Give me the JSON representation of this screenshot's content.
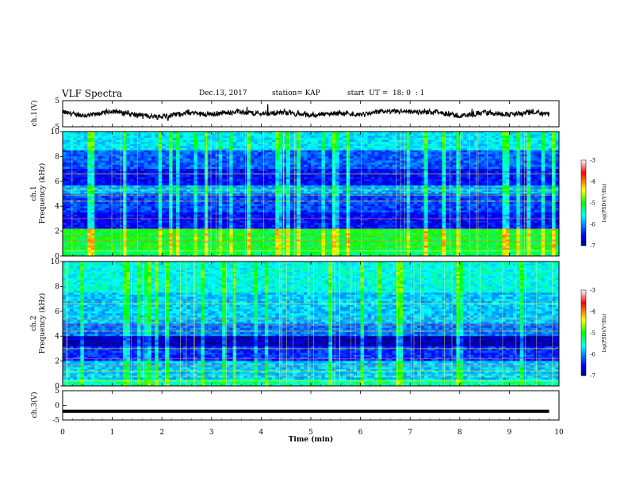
{
  "header": {
    "title": "VLF Spectra",
    "date": "Dec.13, 2017",
    "station": "station= KAP",
    "start": "start  UT =  18: 0  : 1"
  },
  "chart_data": [
    {
      "type": "line",
      "panel": "ch1-waveform",
      "ylabel": "ch.1(V)",
      "ylim": [
        -5,
        5
      ],
      "yticks": [
        "5",
        "-5"
      ],
      "x": [
        0,
        0.5,
        1,
        1.5,
        2,
        2.5,
        3,
        3.5,
        4,
        4.5,
        5,
        5.5,
        6,
        6.5,
        7,
        7.5,
        8,
        8.5,
        9,
        9.5,
        9.8
      ],
      "values": [
        0.5,
        -0.8,
        1.0,
        -0.5,
        -1.2,
        0.4,
        -0.2,
        0.8,
        0.0,
        0.5,
        -0.6,
        0.3,
        -0.4,
        1.0,
        0.6,
        0.8,
        -1.0,
        0.5,
        -0.3,
        0.6,
        -0.2
      ]
    },
    {
      "type": "heatmap",
      "panel": "ch1-spectrogram",
      "ylabel": "ch.1\nFrequency (kHz)",
      "ylim": [
        0,
        10
      ],
      "yticks": [
        "0",
        "2",
        "4",
        "6",
        "8",
        "10"
      ],
      "colorbar": {
        "label": "log(PSD)(V²/Hz)",
        "range": [
          -7,
          -3
        ],
        "ticks": [
          "-3",
          "-4",
          "-5",
          "-6",
          "-7"
        ]
      }
    },
    {
      "type": "heatmap",
      "panel": "ch2-spectrogram",
      "ylabel": "ch.2\nFrequency (kHz)",
      "ylim": [
        0,
        10
      ],
      "yticks": [
        "0",
        "2",
        "4",
        "6",
        "8",
        "10"
      ],
      "colorbar": {
        "label": "log(PSD)(V²/Hz)",
        "range": [
          -7,
          -3
        ],
        "ticks": [
          "-3",
          "-4",
          "-5",
          "-6",
          "-7"
        ]
      }
    },
    {
      "type": "line",
      "panel": "ch3-waveform",
      "ylabel": "ch.3(V)",
      "ylim": [
        -5,
        5
      ],
      "yticks": [
        "5",
        "0",
        "-5"
      ],
      "x": [
        0,
        9.8
      ],
      "values": [
        -2.0,
        -2.0
      ]
    }
  ],
  "xaxis": {
    "label": "Time (min)",
    "range": [
      0,
      10
    ],
    "ticks": [
      "0",
      "1",
      "2",
      "3",
      "4",
      "5",
      "6",
      "7",
      "8",
      "9",
      "10"
    ]
  }
}
